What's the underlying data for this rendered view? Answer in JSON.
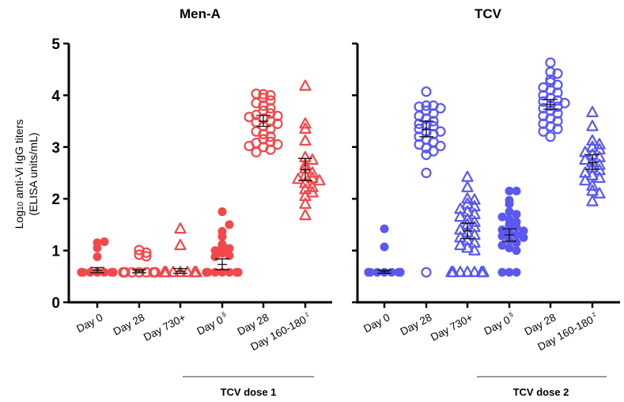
{
  "chart_data": {
    "type": "scatter",
    "ylabel_main": "Log",
    "ylabel_sub": "10",
    "ylabel_rest": " anti-Vi IgG titers",
    "ylabel_line2": "(ELISA units/mL)",
    "ylim": [
      0,
      5
    ],
    "yticks": [
      "0",
      "1",
      "2",
      "3",
      "4",
      "5"
    ],
    "colors": {
      "men_a": "#f2484b",
      "tcv": "#5a58f0",
      "error_bar": "#111111"
    },
    "xlabels": [
      {
        "text": "Day 0",
        "sup": ""
      },
      {
        "text": "Day 28",
        "sup": ""
      },
      {
        "text": "Day 730+",
        "sup": ""
      },
      {
        "text": "Day 0",
        "sup": "§"
      },
      {
        "text": "Day 28",
        "sup": ""
      },
      {
        "text": "Day 160-180",
        "sup": "‡"
      }
    ],
    "panels": [
      {
        "title": "Men-A",
        "group_label": "TCV dose 1",
        "groups": [
          {
            "marker": "filled-circle",
            "mean": 0.62,
            "ci": [
              0.57,
              0.67
            ],
            "values": [
              0.58,
              0.58,
              0.58,
              0.58,
              0.58,
              0.58,
              0.58,
              0.58,
              0.58,
              0.58,
              0.58,
              0.58,
              1.15,
              1.17,
              1.05,
              0.88
            ]
          },
          {
            "marker": "open-circle",
            "mean": 0.6,
            "ci": [
              0.57,
              0.63
            ],
            "values": [
              0.58,
              0.58,
              0.58,
              0.58,
              0.58,
              0.58,
              0.58,
              0.58,
              0.58,
              0.58,
              0.58,
              0.58,
              1.01,
              0.92,
              0.89,
              0.96
            ]
          },
          {
            "marker": "open-triangle",
            "mean": 0.6,
            "ci": [
              0.56,
              0.65
            ],
            "values": [
              0.58,
              0.58,
              0.58,
              0.58,
              0.58,
              0.58,
              0.58,
              0.58,
              0.58,
              0.58,
              0.58,
              0.58,
              1.42,
              1.1
            ]
          },
          {
            "marker": "filled-circle",
            "mean": 0.73,
            "ci": [
              0.63,
              0.84
            ],
            "values": [
              0.58,
              0.58,
              0.58,
              0.58,
              0.58,
              0.58,
              0.58,
              0.58,
              0.58,
              0.58,
              0.58,
              0.58,
              1.75,
              1.37,
              1.5,
              1.27,
              1.12,
              1.08,
              1.04,
              1.0,
              0.95,
              0.9,
              0.88
            ]
          },
          {
            "marker": "open-circle",
            "mean": 3.5,
            "ci": [
              3.4,
              3.61
            ],
            "values": [
              4.02,
              4.0,
              4.03,
              3.95,
              3.9,
              3.85,
              3.8,
              3.75,
              3.7,
              3.65,
              3.62,
              3.6,
              3.58,
              3.55,
              3.5,
              3.48,
              3.45,
              3.4,
              3.35,
              3.3,
              3.25,
              3.2,
              3.15,
              3.1,
              3.08,
              3.05,
              3.02,
              3.0,
              2.95,
              2.9
            ]
          },
          {
            "marker": "open-triangle",
            "mean": 2.56,
            "ci": [
              2.35,
              2.78
            ],
            "values": [
              4.18,
              3.45,
              3.35,
              3.12,
              2.8,
              2.75,
              2.65,
              2.58,
              2.5,
              2.45,
              2.4,
              2.38,
              2.35,
              2.3,
              2.22,
              2.18,
              2.12,
              2.05,
              1.9,
              1.68
            ]
          }
        ]
      },
      {
        "title": "TCV",
        "group_label": "TCV dose 2",
        "groups": [
          {
            "marker": "filled-circle",
            "mean": 0.59,
            "ci": [
              0.56,
              0.62
            ],
            "values": [
              0.58,
              0.58,
              0.58,
              0.58,
              0.58,
              0.58,
              0.58,
              0.58,
              0.58,
              0.58,
              0.58,
              0.58,
              1.42,
              1.07
            ]
          },
          {
            "marker": "open-circle",
            "mean": 3.34,
            "ci": [
              3.2,
              3.5
            ],
            "values": [
              4.07,
              3.8,
              3.8,
              3.78,
              3.75,
              3.7,
              3.65,
              3.6,
              3.55,
              3.5,
              3.45,
              3.42,
              3.4,
              3.35,
              3.3,
              3.28,
              3.25,
              3.2,
              3.15,
              3.1,
              3.05,
              3.02,
              2.98,
              2.92,
              2.85,
              2.5,
              0.58
            ]
          },
          {
            "marker": "open-triangle",
            "mean": 1.38,
            "ci": [
              1.23,
              1.53
            ],
            "values": [
              2.42,
              2.22,
              2.0,
              1.98,
              1.9,
              1.85,
              1.8,
              1.75,
              1.7,
              1.65,
              1.6,
              1.55,
              1.5,
              1.45,
              1.4,
              1.35,
              1.3,
              1.25,
              1.2,
              1.15,
              1.1,
              1.05,
              1.0,
              0.58,
              0.58,
              0.58,
              0.58,
              0.58,
              0.58,
              0.58,
              0.58,
              0.58,
              0.58
            ]
          },
          {
            "marker": "filled-circle",
            "mean": 1.3,
            "ci": [
              1.18,
              1.42
            ],
            "values": [
              2.15,
              2.15,
              1.97,
              1.9,
              1.75,
              1.7,
              1.65,
              1.6,
              1.55,
              1.5,
              1.45,
              1.4,
              1.38,
              1.35,
              1.3,
              1.28,
              1.25,
              1.2,
              1.15,
              1.1,
              1.05,
              1.0,
              0.58,
              0.58,
              0.58
            ]
          },
          {
            "marker": "open-circle",
            "mean": 3.82,
            "ci": [
              3.73,
              3.92
            ],
            "values": [
              4.63,
              4.45,
              4.42,
              4.3,
              4.25,
              4.2,
              4.15,
              4.1,
              4.05,
              4.0,
              3.95,
              3.9,
              3.88,
              3.85,
              3.8,
              3.78,
              3.75,
              3.7,
              3.65,
              3.6,
              3.55,
              3.5,
              3.45,
              3.4,
              3.35,
              3.3,
              3.2
            ]
          },
          {
            "marker": "open-triangle",
            "mean": 2.7,
            "ci": [
              2.57,
              2.85
            ],
            "values": [
              3.67,
              3.4,
              3.12,
              3.05,
              3.0,
              2.95,
              2.9,
              2.85,
              2.8,
              2.75,
              2.7,
              2.65,
              2.6,
              2.55,
              2.5,
              2.45,
              2.4,
              2.35,
              2.25,
              2.15,
              2.1,
              1.95
            ]
          }
        ]
      }
    ]
  }
}
